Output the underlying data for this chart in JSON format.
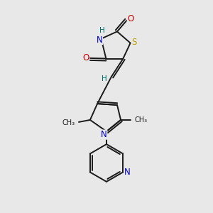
{
  "background_color": "#e8e8e8",
  "bond_color": "#1a1a1a",
  "atom_colors": {
    "N": "#0000cc",
    "O": "#cc0000",
    "S": "#b8a000",
    "H": "#007070",
    "C": "#1a1a1a"
  },
  "figsize": [
    3.0,
    3.0
  ],
  "dpi": 100,
  "xlim": [
    0,
    10
  ],
  "ylim": [
    0,
    10
  ],
  "lw": 1.4,
  "fs": 8.5,
  "fs_small": 7.5
}
